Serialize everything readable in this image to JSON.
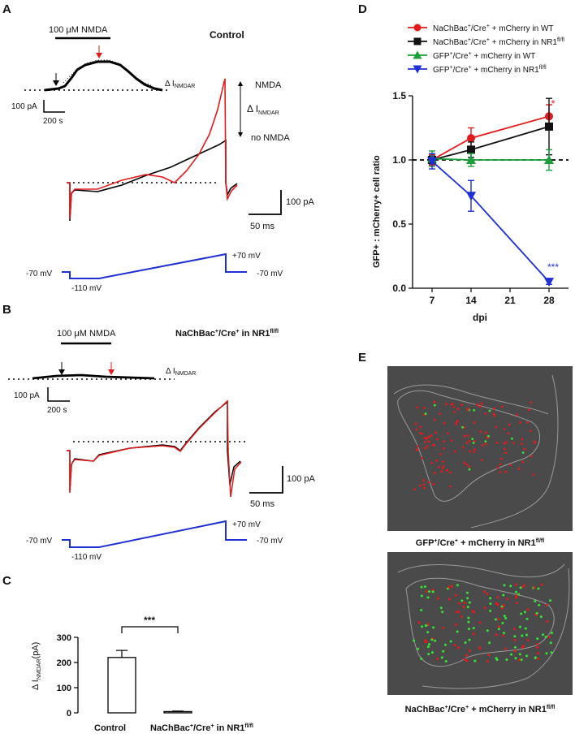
{
  "panels": {
    "A": {
      "letter": "A",
      "title": "Control",
      "drug": "100 μM NMDA",
      "delta_label": "Δ I",
      "delta_sub": "NMDAR",
      "scale_current": "100 pA",
      "scale_time_long": "200 s",
      "scale_current_2": "100 pA",
      "scale_time_short": "50 ms",
      "nmda_label": "NMDA",
      "no_nmda_label": "no NMDA",
      "v_hold_left": "-70 mV",
      "v_min": "-110 mV",
      "v_max": "+70 mV",
      "v_hold_right": "-70 mV"
    },
    "B": {
      "letter": "B",
      "title": "NaChBac",
      "title_sup1": "+",
      "title_mid": "/Cre",
      "title_sup2": "+",
      "title_end": " in NR1",
      "title_sup3": "fl/fl",
      "drug": "100 μM NMDA",
      "delta_label": "Δ I",
      "delta_sub": "NMDAR",
      "scale_current": "100 pA",
      "scale_time_long": "200 s",
      "scale_current_2": "100 pA",
      "scale_time_short": "50 ms",
      "v_hold_left": "-70 mV",
      "v_min": "-110 mV",
      "v_max": "+70 mV",
      "v_hold_right": "-70 mV"
    },
    "C": {
      "letter": "C",
      "significance": "***",
      "ylabel": "Δ I",
      "ylabel_sub": "NMDAR",
      "ylabel_end": "(pA)",
      "cat1": "Control",
      "cat2_a": "NaChBac",
      "cat2_sup1": "+",
      "cat2_b": "/Cre",
      "cat2_sup2": "+",
      "cat2_c": " in NR1",
      "cat2_sup3": "fl/fl"
    },
    "D": {
      "letter": "D",
      "legend": [
        {
          "a": "NaChBac",
          "s1": "+",
          "b": "/Cre",
          "s2": "+",
          "c": " + mCherry in WT",
          "s3": "",
          "color": "#e31a1c",
          "marker": "circle"
        },
        {
          "a": "NaChBac",
          "s1": "+",
          "b": "/Cre",
          "s2": "+",
          "c": " + mCherry in NR1",
          "s3": "fl/fl",
          "color": "#111111",
          "marker": "square"
        },
        {
          "a": "GFP",
          "s1": "+",
          "b": "/Cre",
          "s2": "+",
          "c": "      + mCherry in WT",
          "s3": "",
          "color": "#1a9e3a",
          "marker": "triangle-up"
        },
        {
          "a": "GFP",
          "s1": "+",
          "b": "/Cre",
          "s2": "+",
          "c": "      + mCherry in NR1",
          "s3": "fl/fl",
          "color": "#1f2fd6",
          "marker": "triangle-down"
        }
      ],
      "ylabel": "GFP+ : mCherry+ cell ratio",
      "xlabel": "dpi",
      "annot_red": "*",
      "annot_blue": "***"
    },
    "E": {
      "letter": "E",
      "caption1_a": "GFP",
      "caption1_s1": "+",
      "caption1_b": "/Cre",
      "caption1_s2": "+",
      "caption1_c": " + mCherry in NR1",
      "caption1_s3": "fl/fl",
      "caption2_a": "NaChBac",
      "caption2_s1": "+",
      "caption2_b": "/Cre",
      "caption2_s2": "+",
      "caption2_c": " + mCherry in NR1",
      "caption2_s3": "fl/fl"
    }
  },
  "colors": {
    "red": "#e31a1c",
    "black": "#111111",
    "green": "#1a9e3a",
    "blue": "#1f2fd6",
    "micro_bg": "#4a4a4a"
  },
  "chart_data": [
    {
      "type": "bar",
      "panel": "C",
      "categories": [
        "Control",
        "NaChBac+/Cre+ in NR1fl/fl"
      ],
      "values": [
        220,
        5
      ],
      "errors": [
        28,
        2
      ],
      "ylabel": "Δ INMDAR (pA)",
      "ylim": [
        0,
        300
      ],
      "yticks": [
        0,
        100,
        200,
        300
      ],
      "significance": "***"
    },
    {
      "type": "line",
      "panel": "D",
      "x": [
        7,
        14,
        21,
        28
      ],
      "xticks": [
        7,
        14,
        21,
        28
      ],
      "xlim": [
        3.5,
        31.5
      ],
      "ylim": [
        0,
        1.5
      ],
      "yticks": [
        0.0,
        0.5,
        1.0,
        1.5
      ],
      "reference_line": 1.0,
      "xlabel": "dpi",
      "ylabel": "GFP+ : mCherry+ cell ratio",
      "series": [
        {
          "name": "NaChBac+/Cre+ + mCherry in WT",
          "color": "#e31a1c",
          "marker": "circle",
          "x": [
            7,
            14,
            28
          ],
          "values": [
            1.0,
            1.17,
            1.34
          ],
          "errors": [
            0.04,
            0.08,
            0.09
          ]
        },
        {
          "name": "NaChBac+/Cre+ + mCherry in NR1fl/fl",
          "color": "#111111",
          "marker": "square",
          "x": [
            7,
            14,
            28
          ],
          "values": [
            1.0,
            1.08,
            1.26
          ],
          "errors": [
            0.03,
            0.06,
            0.22
          ]
        },
        {
          "name": "GFP+/Cre+ + mCherry in WT",
          "color": "#1a9e3a",
          "marker": "triangle-up",
          "x": [
            7,
            14,
            28
          ],
          "values": [
            1.01,
            1.0,
            1.0
          ],
          "errors": [
            0.06,
            0.05,
            0.08
          ]
        },
        {
          "name": "GFP+/Cre+ + mCherry in NR1fl/fl",
          "color": "#1f2fd6",
          "marker": "triangle-down",
          "x": [
            7,
            14,
            28
          ],
          "values": [
            0.99,
            0.72,
            0.05
          ],
          "errors": [
            0.06,
            0.12,
            0.02
          ]
        }
      ]
    }
  ]
}
